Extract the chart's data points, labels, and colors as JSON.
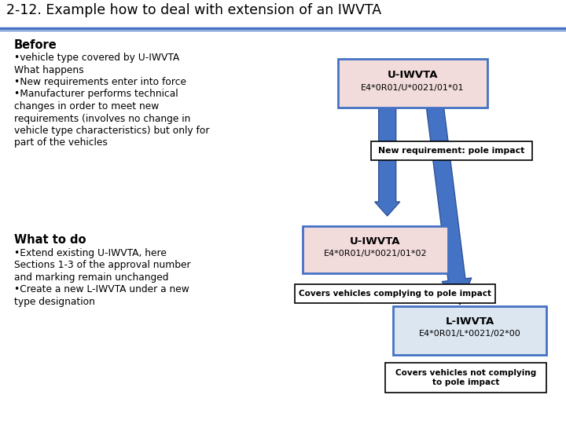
{
  "title": "2-12. Example how to deal with extension of an IWVTA",
  "background_color": "#ffffff",
  "title_color": "#000000",
  "title_fontsize": 12.5,
  "sep_color": "#4472c4",
  "before_title": "Before",
  "what_title": "What to do",
  "before_lines": [
    "•vehicle type covered by U-IWVTA",
    "What happens",
    "•New requirements enter into force",
    "•Manufacturer performs technical",
    "changes in order to meet new",
    "requirements (involves no change in",
    "vehicle type characteristics) but only for",
    "part of the vehicles"
  ],
  "what_lines": [
    "•Extend existing U-IWVTA, here",
    "Sections 1-3 of the approval number",
    "and marking remain unchanged",
    "•Create a new L-IWVTA under a new",
    "type designation"
  ],
  "box1_title": "U-IWVTA",
  "box1_code": "E4*0R01/U*0021/01*01",
  "box1_fc": "#f2dcdb",
  "box1_ec": "#4472c4",
  "box2_title": "U-IWVTA",
  "box2_code": "E4*0R01/U*0021/01*02",
  "box2_fc": "#f2dcdb",
  "box2_ec": "#4472c4",
  "box3_title": "L-IWVTA",
  "box3_code": "E4*0R01/L*0021/02*00",
  "box3_fc": "#dce6f1",
  "box3_ec": "#4472c4",
  "note1": "New requirement: pole impact",
  "note2": "Covers vehicles complying to pole impact",
  "note3": "Covers vehicles not complying\nto pole impact",
  "arrow_fc": "#4472c4",
  "arrow_ec": "#2f5597"
}
